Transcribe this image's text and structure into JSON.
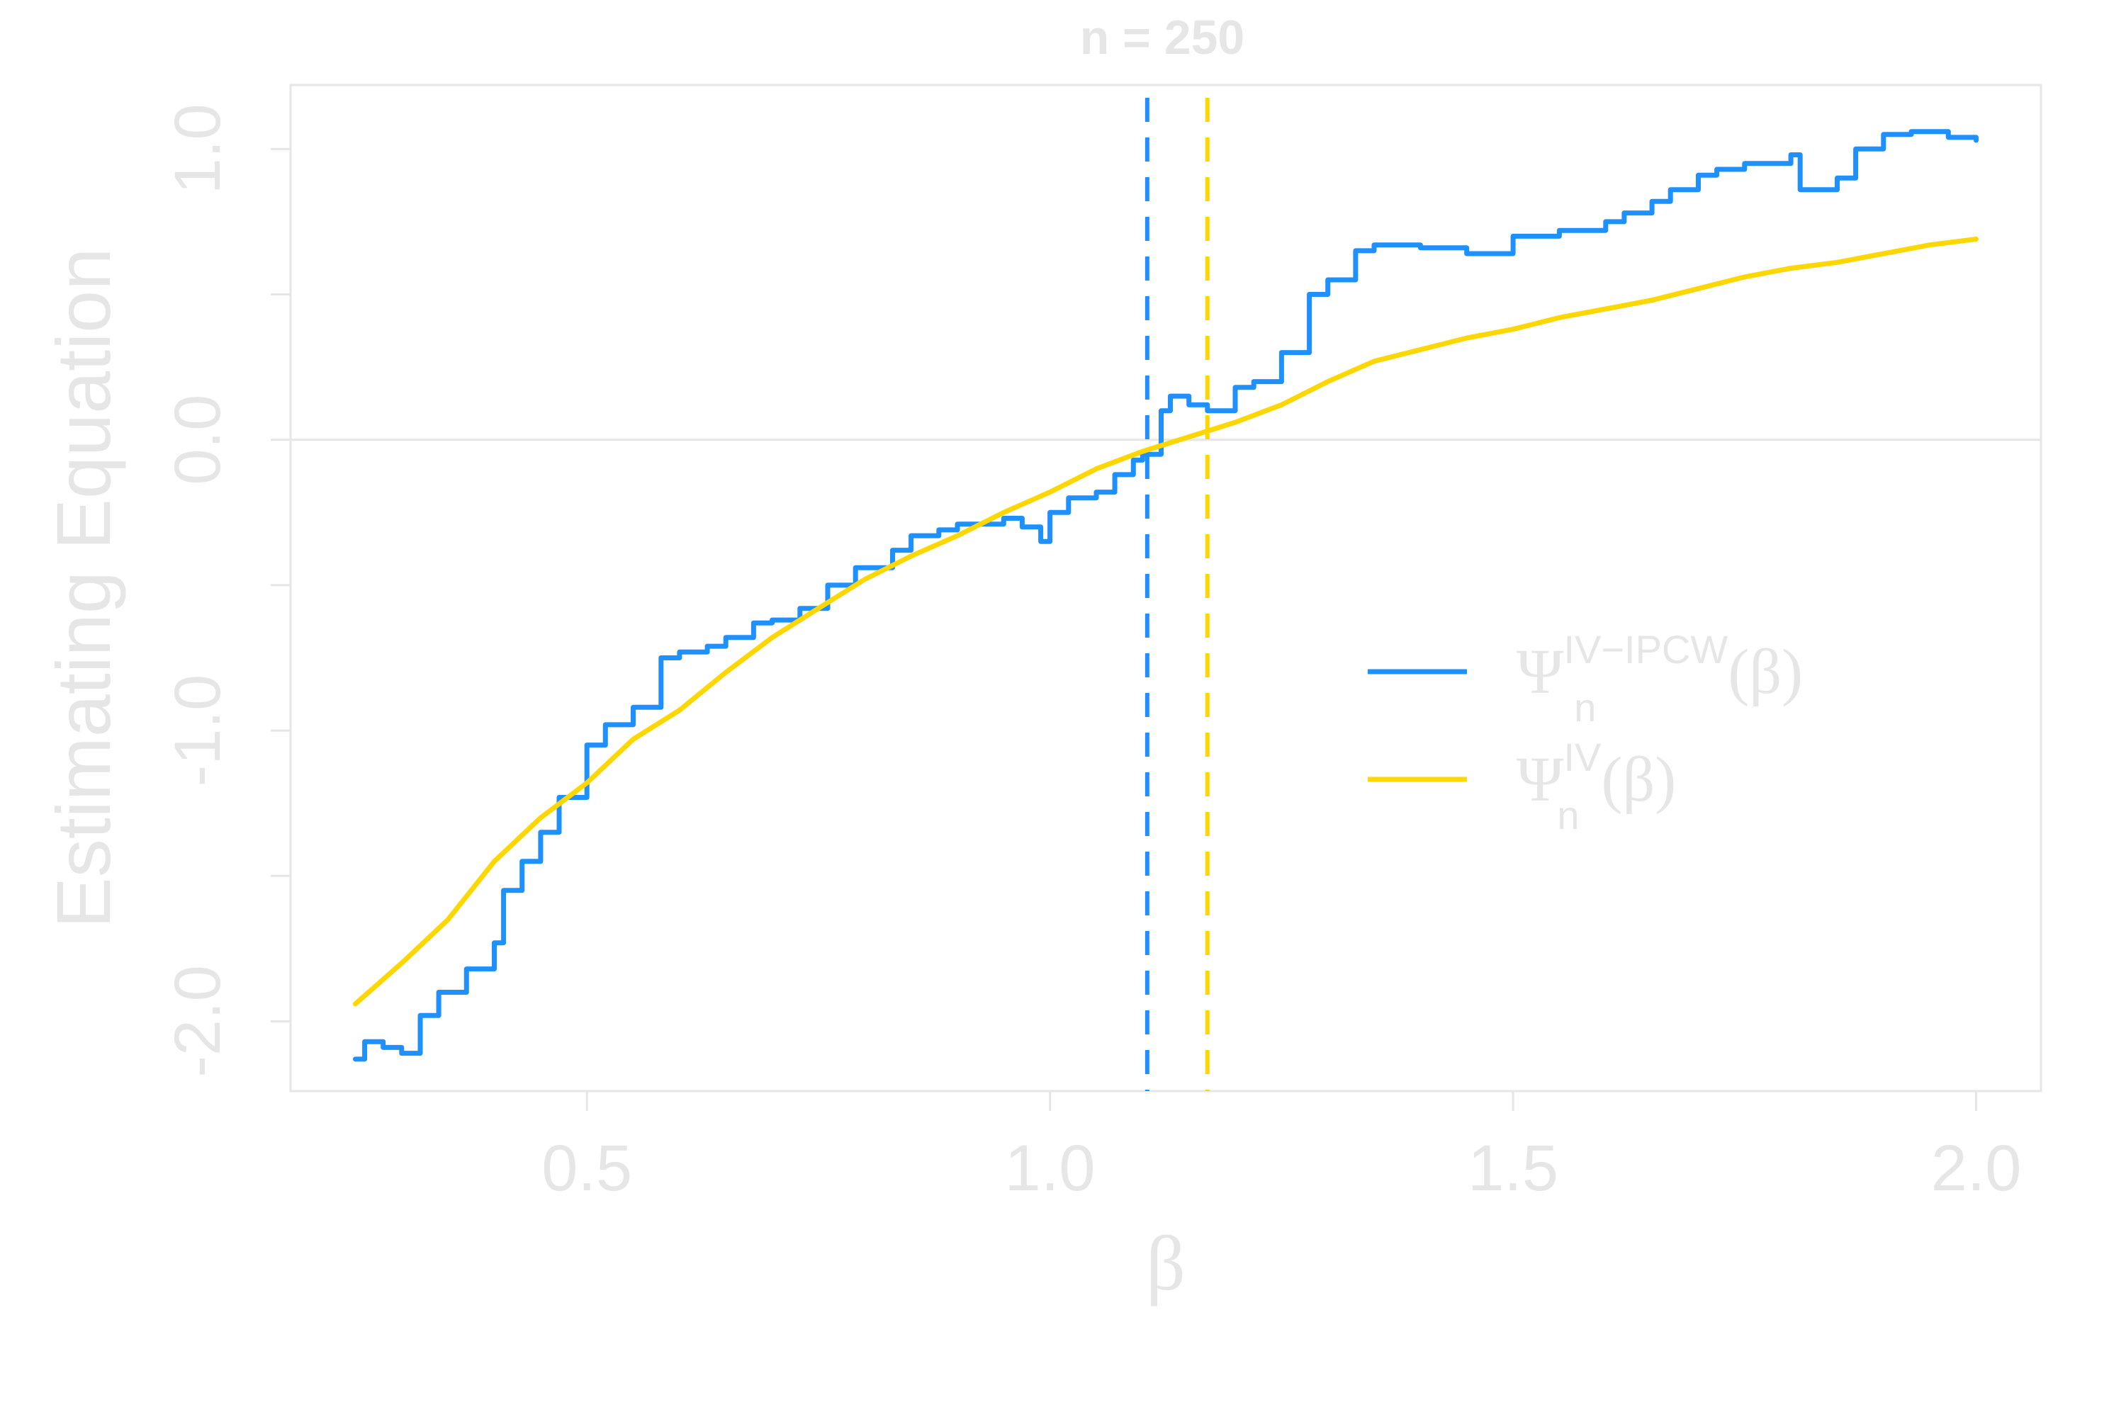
{
  "chart_data": {
    "type": "line",
    "title": "n = 250",
    "xlabel": "β",
    "ylabel": "Estimating Equation",
    "xlim": [
      0.18,
      2.07
    ],
    "ylim": [
      -2.24,
      1.22
    ],
    "x_ticks": [
      0.5,
      1.0,
      1.5,
      2.0
    ],
    "x_tick_labels": [
      "0.5",
      "1.0",
      "1.5",
      "2.0"
    ],
    "y_ticks": [
      -2.0,
      -1.5,
      -1.0,
      -0.5,
      0.0,
      0.5,
      1.0
    ],
    "y_tick_labels": [
      "-2.0",
      "",
      "-1.0",
      "",
      "0.0",
      "",
      "1.0"
    ],
    "reference_hline": 0.0,
    "legend_position": "right",
    "series": [
      {
        "name_base": "Ψ",
        "name_sup": "IV−IPCW",
        "name_sub": "n",
        "name_arg": "(β)",
        "color": "#1E90FF",
        "step": true,
        "root": 1.105,
        "x": [
          0.25,
          0.26,
          0.28,
          0.3,
          0.32,
          0.34,
          0.37,
          0.4,
          0.41,
          0.43,
          0.45,
          0.47,
          0.5,
          0.52,
          0.55,
          0.58,
          0.6,
          0.63,
          0.65,
          0.68,
          0.7,
          0.73,
          0.76,
          0.79,
          0.8,
          0.83,
          0.85,
          0.88,
          0.9,
          0.93,
          0.95,
          0.97,
          0.99,
          1.0,
          1.02,
          1.05,
          1.07,
          1.09,
          1.1,
          1.12,
          1.13,
          1.15,
          1.17,
          1.2,
          1.22,
          1.25,
          1.28,
          1.3,
          1.33,
          1.35,
          1.38,
          1.4,
          1.45,
          1.5,
          1.55,
          1.6,
          1.62,
          1.65,
          1.67,
          1.7,
          1.72,
          1.75,
          1.78,
          1.8,
          1.81,
          1.83,
          1.85,
          1.87,
          1.9,
          1.93,
          1.95,
          1.97,
          2.0
        ],
        "values": [
          -2.13,
          -2.07,
          -2.09,
          -2.11,
          -1.98,
          -1.9,
          -1.82,
          -1.73,
          -1.55,
          -1.45,
          -1.35,
          -1.23,
          -1.05,
          -0.98,
          -0.92,
          -0.75,
          -0.73,
          -0.71,
          -0.68,
          -0.63,
          -0.62,
          -0.58,
          -0.5,
          -0.44,
          -0.44,
          -0.38,
          -0.33,
          -0.31,
          -0.29,
          -0.29,
          -0.27,
          -0.3,
          -0.35,
          -0.25,
          -0.2,
          -0.18,
          -0.12,
          -0.07,
          -0.05,
          0.1,
          0.15,
          0.12,
          0.1,
          0.18,
          0.2,
          0.3,
          0.5,
          0.55,
          0.65,
          0.67,
          0.67,
          0.66,
          0.64,
          0.7,
          0.72,
          0.75,
          0.78,
          0.82,
          0.86,
          0.91,
          0.93,
          0.95,
          0.95,
          0.98,
          0.86,
          0.86,
          0.9,
          1.0,
          1.05,
          1.06,
          1.06,
          1.04,
          1.03
        ]
      },
      {
        "name_base": "Ψ",
        "name_sup": "IV",
        "name_sub": "n",
        "name_arg": "(β)",
        "color": "#FFD700",
        "step": false,
        "root": 1.17,
        "x": [
          0.25,
          0.3,
          0.35,
          0.4,
          0.45,
          0.5,
          0.55,
          0.6,
          0.65,
          0.7,
          0.75,
          0.8,
          0.85,
          0.9,
          0.95,
          1.0,
          1.05,
          1.1,
          1.15,
          1.2,
          1.25,
          1.3,
          1.35,
          1.4,
          1.45,
          1.5,
          1.55,
          1.6,
          1.65,
          1.7,
          1.75,
          1.8,
          1.85,
          1.9,
          1.95,
          2.0
        ],
        "values": [
          -1.94,
          -1.8,
          -1.65,
          -1.45,
          -1.3,
          -1.18,
          -1.03,
          -0.93,
          -0.8,
          -0.68,
          -0.58,
          -0.48,
          -0.4,
          -0.33,
          -0.25,
          -0.18,
          -0.1,
          -0.04,
          0.01,
          0.06,
          0.12,
          0.2,
          0.27,
          0.31,
          0.35,
          0.38,
          0.42,
          0.45,
          0.48,
          0.52,
          0.56,
          0.59,
          0.61,
          0.64,
          0.67,
          0.69
        ]
      }
    ]
  }
}
